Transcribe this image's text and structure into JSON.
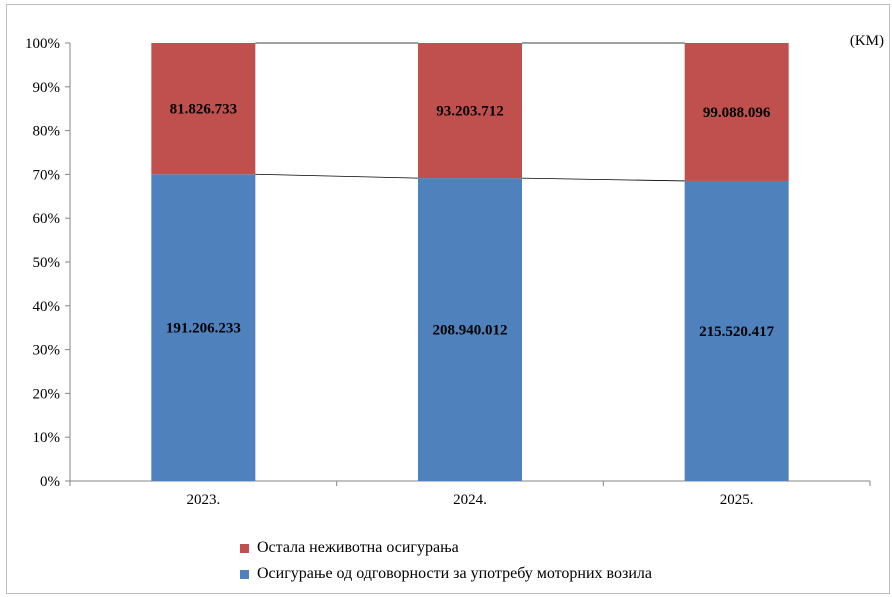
{
  "chart_data": {
    "type": "bar",
    "stacked_percent": true,
    "unit": "(KM)",
    "categories": [
      "2023.",
      "2024.",
      "2025."
    ],
    "series": [
      {
        "name": "Осигурање од одговорности за употребу моторних возила",
        "values": [
          191206233,
          208940012,
          215520417
        ],
        "labels": [
          "191.206.233",
          "208.940.012",
          "215.520.417"
        ],
        "color": "#4f81bd"
      },
      {
        "name": "Остала неживотна осигурања",
        "values": [
          81826733,
          93203712,
          99088096
        ],
        "labels": [
          "81.826.733",
          "93.203.712",
          "99.088.096"
        ],
        "color": "#c0504d"
      }
    ],
    "y_ticks": [
      "0%",
      "10%",
      "20%",
      "30%",
      "40%",
      "50%",
      "60%",
      "70%",
      "80%",
      "90%",
      "100%"
    ],
    "ylim": [
      0,
      100
    ],
    "legend_position": "bottom",
    "series_lines": true
  }
}
